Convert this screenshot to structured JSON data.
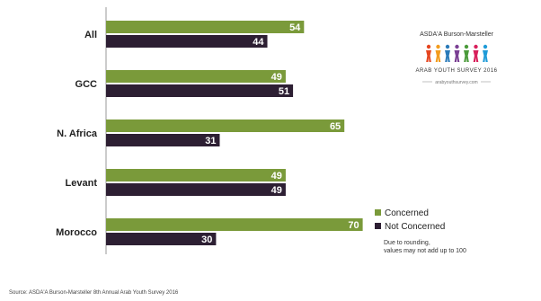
{
  "chart_data": {
    "type": "bar",
    "orientation": "horizontal",
    "categories": [
      "All",
      "GCC",
      "N. Africa",
      "Levant",
      "Morocco"
    ],
    "series": [
      {
        "name": "Concerned",
        "color": "#7a9a3a",
        "values": [
          54,
          49,
          65,
          49,
          70
        ]
      },
      {
        "name": "Not Concerned",
        "color": "#2d1f33",
        "values": [
          44,
          51,
          31,
          49,
          30
        ]
      }
    ],
    "xlim": [
      0,
      100
    ],
    "grid": false,
    "legend_position": "right",
    "note": "Due to rounding, values may not add up to 100",
    "source": "Source: ASDA'A Burson-Marsteller 8th Annual Arab Youth Survey 2016"
  },
  "logo": {
    "brand": "ASDA'A Burson-Marsteller",
    "survey": "ARAB YOUTH SURVEY 2016",
    "website": "arabyouthsurvey.com",
    "figure_colors": [
      "#e5451f",
      "#f39c1d",
      "#2a7ab8",
      "#7a3f93",
      "#4a9a3a",
      "#d81f5b",
      "#1f9bd8"
    ]
  }
}
